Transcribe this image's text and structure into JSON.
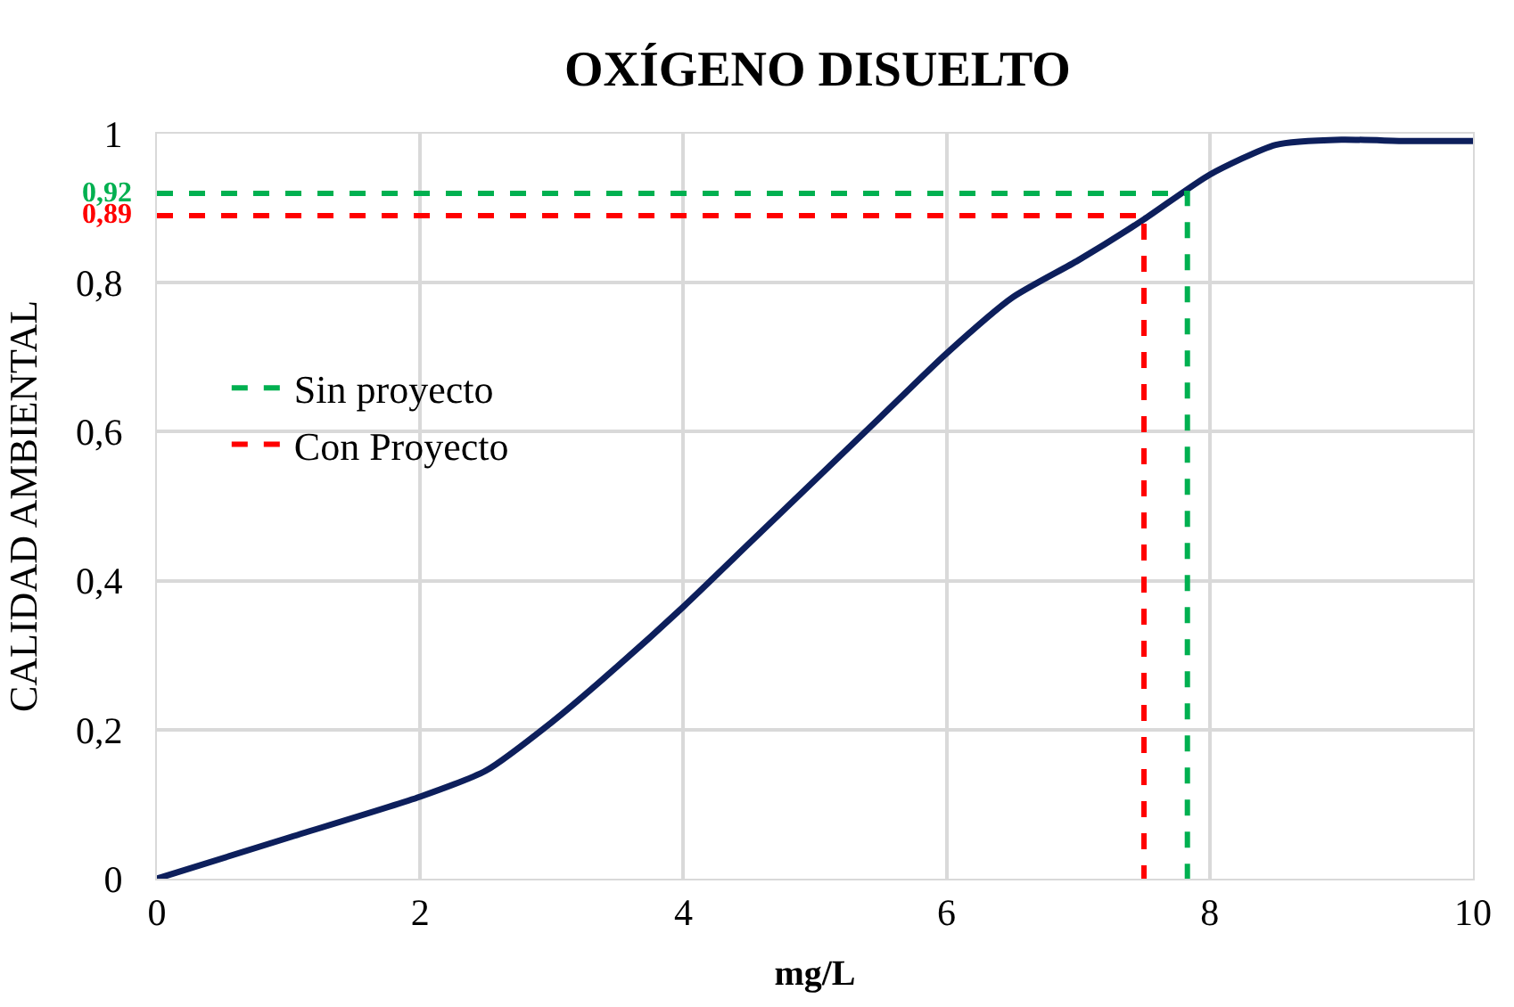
{
  "chart_data": {
    "type": "line",
    "title": "OXÍGENO DISUELTO",
    "xlabel": "mg/L",
    "ylabel": "CALIDAD AMBIENTAL",
    "series": [
      {
        "color": "#0d1f5c",
        "x": [
          0,
          1,
          2,
          2.5,
          3,
          3.5,
          4,
          4.5,
          5,
          5.5,
          6,
          6.5,
          7,
          7.5,
          8,
          8.5,
          9,
          9.5,
          10
        ],
        "values": [
          0,
          0.055,
          0.11,
          0.145,
          0.21,
          0.285,
          0.365,
          0.45,
          0.535,
          0.62,
          0.705,
          0.78,
          0.83,
          0.885,
          0.945,
          0.985,
          0.992,
          0.99,
          0.99
        ],
        "line_style": "solid"
      },
      {
        "name": "Sin proyecto",
        "color": "#00b050",
        "x": [
          0,
          7.83,
          7.83
        ],
        "values": [
          0.92,
          0.92,
          0
        ],
        "line_style": "dashed"
      },
      {
        "name": "Con Proyecto",
        "color": "#ff0000",
        "x": [
          0,
          7.5,
          7.5
        ],
        "values": [
          0.89,
          0.89,
          0
        ],
        "line_style": "dashed"
      }
    ],
    "annotations": [
      {
        "text": "0,92",
        "x": 0,
        "y": 0.92
      },
      {
        "text": "0,89",
        "x": 0,
        "y": 0.89
      }
    ],
    "xlim": [
      0,
      10
    ],
    "xticks": [
      0,
      2,
      4,
      6,
      8,
      10
    ],
    "ylim": [
      0,
      1
    ],
    "yticks": [
      0,
      {
        "value": 0.2,
        "label": "0,2"
      },
      {
        "value": 0.4,
        "label": "0,4"
      },
      {
        "value": 0.6,
        "label": "0,6"
      },
      {
        "value": 0.8,
        "label": "0,8"
      },
      1
    ],
    "grid": true,
    "legend": "left"
  }
}
